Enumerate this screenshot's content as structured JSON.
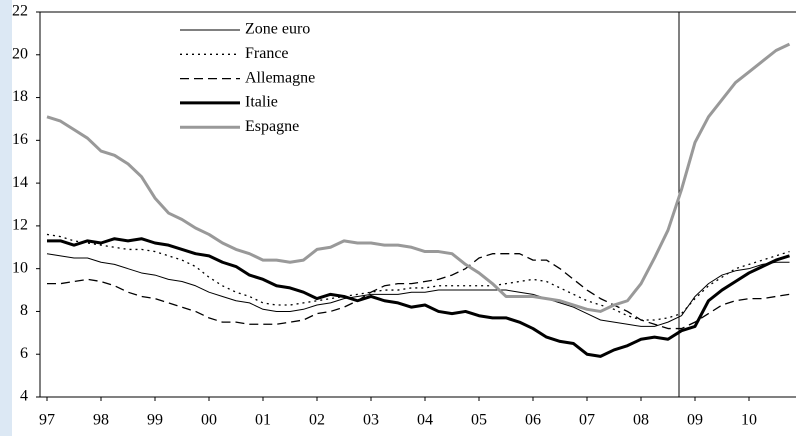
{
  "chart_data": {
    "type": "line",
    "categories": [
      "97",
      null,
      null,
      null,
      "98",
      null,
      null,
      null,
      "99",
      null,
      null,
      null,
      "00",
      null,
      null,
      null,
      "01",
      null,
      null,
      null,
      "02",
      null,
      null,
      null,
      "03",
      null,
      null,
      null,
      "04",
      null,
      null,
      null,
      "05",
      null,
      null,
      null,
      "06",
      null,
      null,
      null,
      "07",
      null,
      null,
      null,
      "08",
      null,
      null,
      null,
      "09",
      null,
      null,
      null,
      "10",
      null,
      null,
      null
    ],
    "ylim": [
      4,
      22
    ],
    "yticks": [
      4,
      6,
      8,
      10,
      12,
      14,
      16,
      18,
      20,
      22
    ],
    "series": [
      {
        "name": "Zone euro",
        "color": "#000000",
        "width": 1,
        "dash": "solid",
        "values": [
          10.7,
          10.6,
          10.5,
          10.5,
          10.3,
          10.2,
          10.0,
          9.8,
          9.7,
          9.5,
          9.4,
          9.2,
          8.9,
          8.7,
          8.5,
          8.4,
          8.1,
          8.0,
          8.0,
          8.1,
          8.3,
          8.4,
          8.6,
          8.7,
          8.8,
          8.8,
          8.8,
          8.9,
          8.9,
          9.0,
          9.0,
          9.0,
          9.0,
          9.0,
          9.0,
          8.9,
          8.8,
          8.6,
          8.4,
          8.2,
          7.9,
          7.6,
          7.5,
          7.4,
          7.3,
          7.3,
          7.5,
          7.8,
          8.7,
          9.3,
          9.7,
          9.9,
          10.0,
          10.2,
          10.3,
          10.3
        ]
      },
      {
        "name": "France",
        "color": "#000000",
        "width": 1.3,
        "dash": "dotted",
        "values": [
          11.6,
          11.5,
          11.3,
          11.2,
          11.1,
          11.0,
          10.9,
          10.9,
          10.8,
          10.6,
          10.4,
          10.1,
          9.6,
          9.2,
          8.9,
          8.7,
          8.4,
          8.3,
          8.3,
          8.4,
          8.5,
          8.6,
          8.7,
          8.8,
          8.9,
          9.0,
          9.0,
          9.1,
          9.1,
          9.2,
          9.2,
          9.2,
          9.2,
          9.2,
          9.3,
          9.4,
          9.5,
          9.4,
          9.1,
          8.8,
          8.5,
          8.3,
          8.1,
          7.8,
          7.6,
          7.6,
          7.7,
          7.9,
          8.6,
          9.2,
          9.6,
          10.0,
          10.2,
          10.4,
          10.6,
          10.8
        ]
      },
      {
        "name": "Allemagne",
        "color": "#000000",
        "width": 1.3,
        "dash": "dashed",
        "values": [
          9.3,
          9.3,
          9.4,
          9.5,
          9.4,
          9.2,
          8.9,
          8.7,
          8.6,
          8.4,
          8.2,
          8.0,
          7.7,
          7.5,
          7.5,
          7.4,
          7.4,
          7.4,
          7.5,
          7.6,
          7.9,
          8.0,
          8.2,
          8.5,
          8.9,
          9.2,
          9.3,
          9.3,
          9.4,
          9.5,
          9.7,
          10.0,
          10.5,
          10.7,
          10.7,
          10.7,
          10.4,
          10.4,
          10.0,
          9.5,
          9.0,
          8.6,
          8.3,
          8.0,
          7.6,
          7.4,
          7.2,
          7.2,
          7.5,
          7.9,
          8.3,
          8.5,
          8.6,
          8.6,
          8.7,
          8.8
        ]
      },
      {
        "name": "Italie",
        "color": "#000000",
        "width": 3,
        "dash": "solid",
        "values": [
          11.3,
          11.3,
          11.1,
          11.3,
          11.2,
          11.4,
          11.3,
          11.4,
          11.2,
          11.1,
          10.9,
          10.7,
          10.6,
          10.3,
          10.1,
          9.7,
          9.5,
          9.2,
          9.1,
          8.9,
          8.6,
          8.8,
          8.7,
          8.5,
          8.7,
          8.5,
          8.4,
          8.2,
          8.3,
          8.0,
          7.9,
          8.0,
          7.8,
          7.7,
          7.7,
          7.5,
          7.2,
          6.8,
          6.6,
          6.5,
          6.0,
          5.9,
          6.2,
          6.4,
          6.7,
          6.8,
          6.7,
          7.1,
          7.3,
          8.5,
          9.0,
          9.4,
          9.8,
          10.1,
          10.4,
          10.6
        ]
      },
      {
        "name": "Espagne",
        "color": "#999999",
        "width": 3,
        "dash": "solid",
        "values": [
          17.1,
          16.9,
          16.5,
          16.1,
          15.5,
          15.3,
          14.9,
          14.3,
          13.3,
          12.6,
          12.3,
          11.9,
          11.6,
          11.2,
          10.9,
          10.7,
          10.4,
          10.4,
          10.3,
          10.4,
          10.9,
          11.0,
          11.3,
          11.2,
          11.2,
          11.1,
          11.1,
          11.0,
          10.8,
          10.8,
          10.7,
          10.2,
          9.8,
          9.3,
          8.7,
          8.7,
          8.7,
          8.6,
          8.5,
          8.3,
          8.1,
          8.0,
          8.3,
          8.5,
          9.3,
          10.5,
          11.8,
          13.7,
          15.9,
          17.1,
          17.9,
          18.7,
          19.2,
          19.7,
          20.2,
          20.5
        ]
      }
    ]
  }
}
